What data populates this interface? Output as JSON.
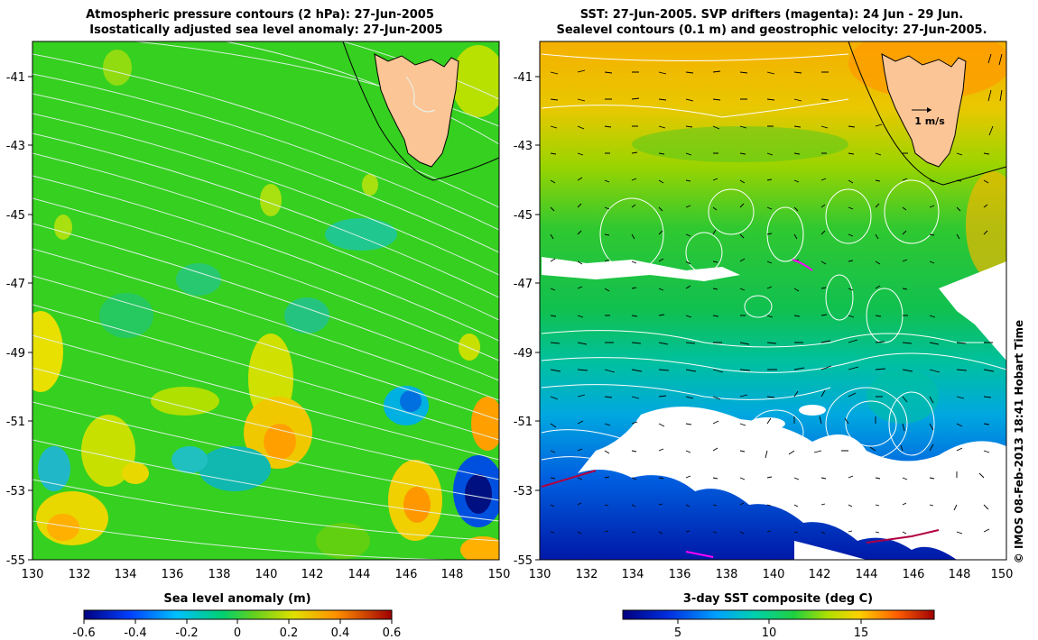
{
  "left_panel": {
    "title_line1": "Atmospheric pressure contours (2 hPa): 27-Jun-2005",
    "title_line2": "Isostatically adjusted sea level anomaly: 27-Jun-2005",
    "colorbar_label": "Sea level anomaly (m)",
    "colorbar_ticks": [
      "-0.6",
      "-0.4",
      "-0.2",
      "0",
      "0.2",
      "0.4",
      "0.6"
    ],
    "colorbar_range": [
      -0.6,
      0.6
    ],
    "x_ticks": [
      "130",
      "132",
      "134",
      "136",
      "138",
      "140",
      "142",
      "144",
      "146",
      "148",
      "150"
    ],
    "y_ticks": [
      "-41",
      "-43",
      "-45",
      "-47",
      "-49",
      "-51",
      "-53",
      "-55"
    ]
  },
  "right_panel": {
    "title_line1": "SST: 27-Jun-2005. SVP drifters (magenta): 24 Jun - 29 Jun.",
    "title_line2": "Sealevel contours (0.1 m) and geostrophic velocity: 27-Jun-2005.",
    "scale_label": "1 m/s",
    "colorbar_label": "3-day SST composite (deg C)",
    "colorbar_ticks": [
      "5",
      "10",
      "15"
    ],
    "colorbar_range": [
      2,
      19
    ],
    "x_ticks": [
      "130",
      "132",
      "134",
      "136",
      "138",
      "140",
      "142",
      "144",
      "146",
      "148",
      "150"
    ],
    "y_ticks": [
      "-41",
      "-43",
      "-45",
      "-47",
      "-49",
      "-51",
      "-53",
      "-55"
    ]
  },
  "map_extent": {
    "lon": [
      130,
      150
    ],
    "lat": [
      -55,
      -40
    ]
  },
  "credit": "© IMOS 08-Feb-2013 18:41 Hobart Time",
  "colors": {
    "land": "#fbc596",
    "pressure_contour": "#e8f4f0",
    "sst_contour": "#ffffff",
    "drifter": "#ff00ff",
    "no_data": "#ffffff"
  }
}
